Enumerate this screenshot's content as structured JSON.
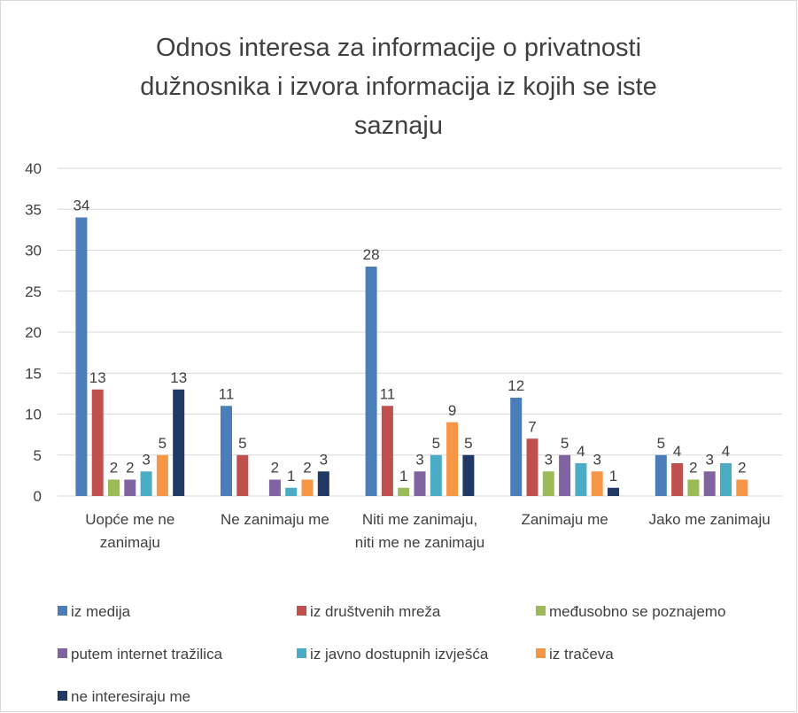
{
  "chart_data": {
    "type": "bar",
    "title": "Odnos interesa za informacije o privatnosti dužnosnika i izvora informacija iz kojih se iste saznaju",
    "categories": [
      "Uopće me ne zanimaju",
      "Ne zanimaju me",
      "Niti me zanimaju, niti me ne zanimaju",
      "Zanimaju me",
      "Jako me zanimaju"
    ],
    "series": [
      {
        "name": "iz medija",
        "color": "#4a7ebb",
        "values": [
          34,
          11,
          28,
          12,
          5
        ]
      },
      {
        "name": "iz društvenih mreža",
        "color": "#c0504d",
        "values": [
          13,
          5,
          11,
          7,
          4
        ]
      },
      {
        "name": "međusobno se poznajemo",
        "color": "#9bbb59",
        "values": [
          2,
          null,
          1,
          3,
          2
        ]
      },
      {
        "name": "putem internet tražilica",
        "color": "#8064a2",
        "values": [
          2,
          2,
          3,
          5,
          3
        ]
      },
      {
        "name": "iz javno dostupnih izvješća",
        "color": "#4bacc6",
        "values": [
          3,
          1,
          5,
          4,
          4
        ]
      },
      {
        "name": "iz tračeva",
        "color": "#f79646",
        "values": [
          5,
          2,
          9,
          3,
          2
        ]
      },
      {
        "name": "ne interesiraju me",
        "color": "#1f3864",
        "values": [
          13,
          3,
          5,
          1,
          null
        ]
      }
    ],
    "ylim": [
      0,
      40
    ],
    "yticks": [
      0,
      5,
      10,
      15,
      20,
      25,
      30,
      35,
      40
    ],
    "grid": true,
    "legend": "bottom"
  }
}
